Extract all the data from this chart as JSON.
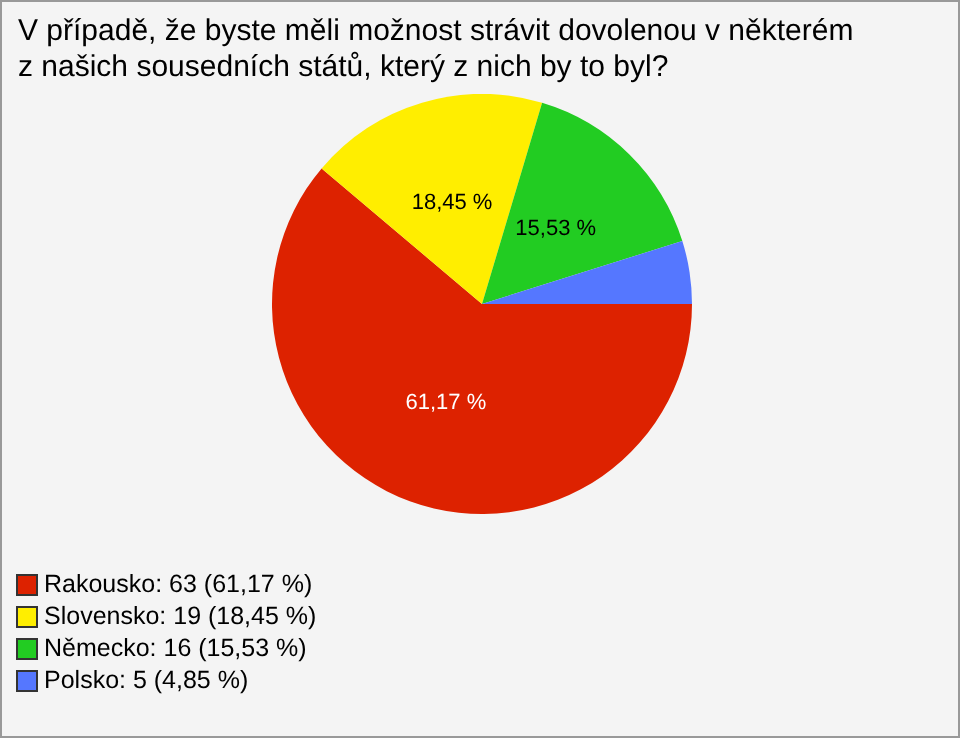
{
  "chart_data": {
    "type": "pie",
    "title": "V případě, že byste měli možnost strávit dovolenou v některém z našich sousedních států, který z nich by to byl?",
    "categories": [
      "Rakousko: 63 (61,17 %)",
      "Slovensko: 19 (18,45 %)",
      "Německo: 16 (15,53 %)",
      "Polsko: 5 (4,85 %)"
    ],
    "values": [
      61.17,
      18.45,
      15.53,
      4.85
    ],
    "colors": [
      "#dd2200",
      "#ffee00",
      "#22cc22",
      "#5577ff"
    ],
    "value_labels": [
      "61,17 %",
      "18,45 %",
      "15,53 %",
      null
    ],
    "legend": "bottom left"
  }
}
